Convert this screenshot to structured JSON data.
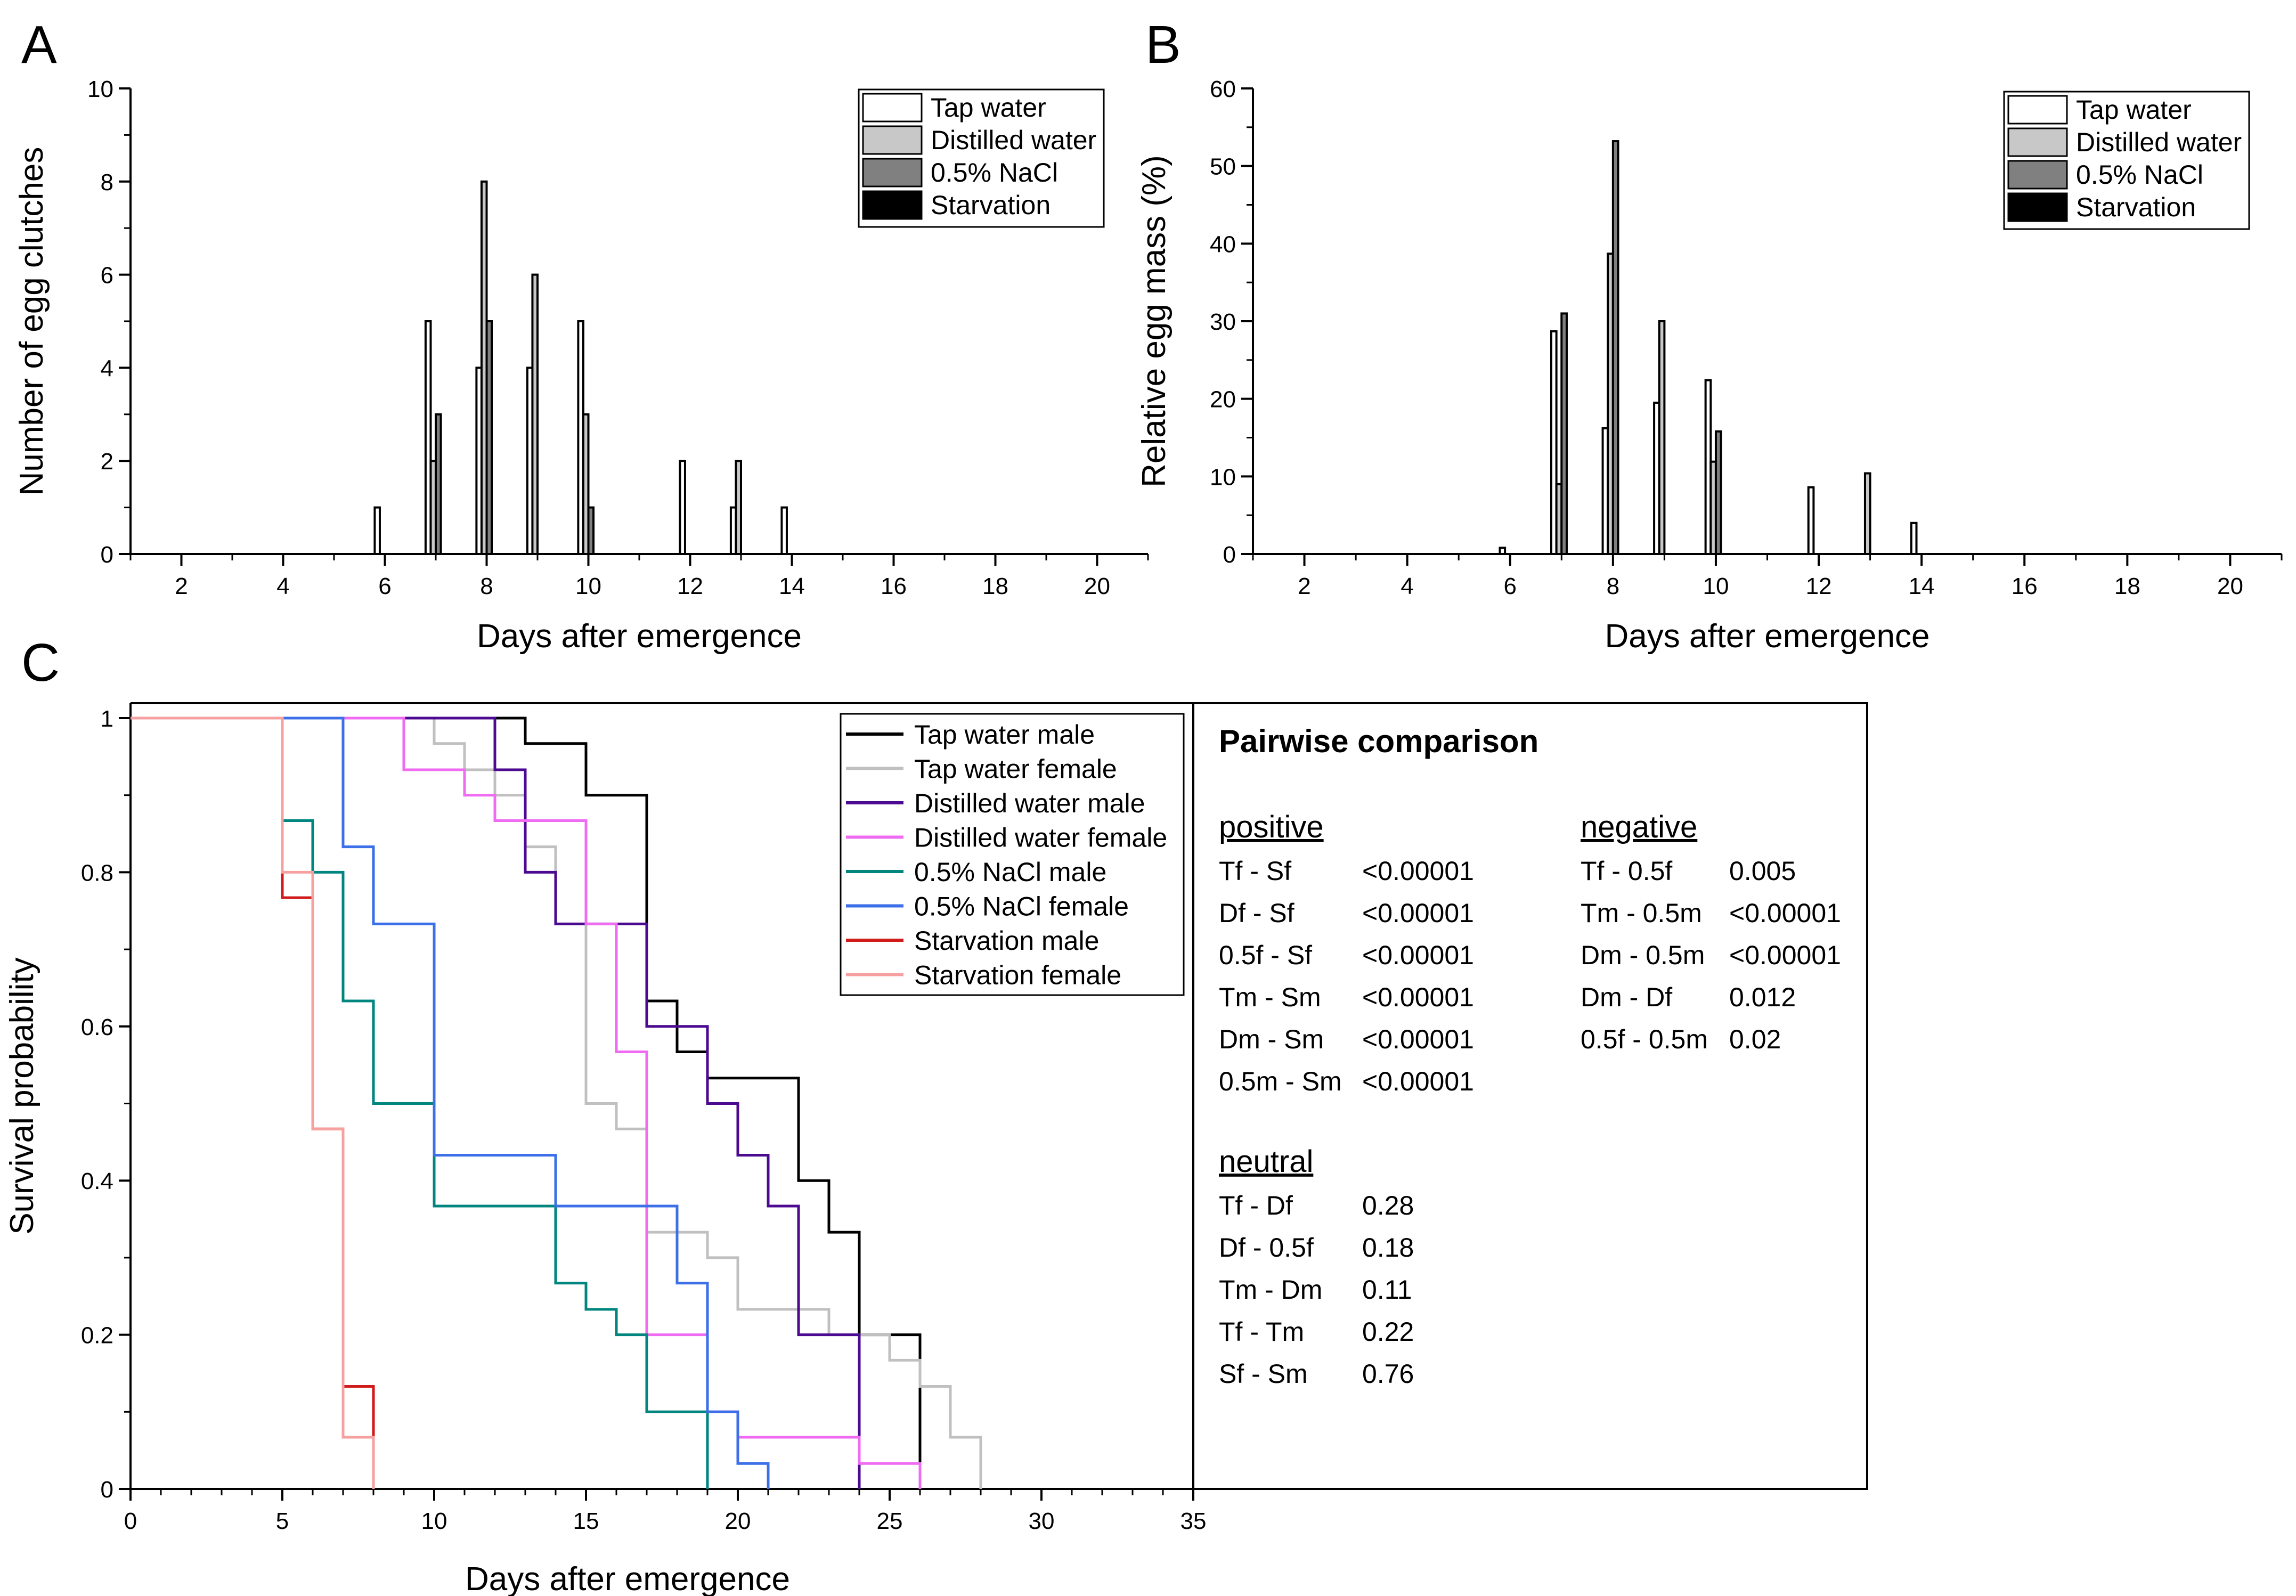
{
  "panel_labels": [
    "A",
    "B",
    "C"
  ],
  "colors": {
    "tap_water": "#ffffff",
    "distilled_water": "#c8c8c8",
    "nacl": "#808080",
    "starvation": "#000000",
    "tap_male": "#000000",
    "tap_female": "#c0c0c0",
    "dist_male": "#4b0a8f",
    "dist_female": "#ef6cf2",
    "nacl_male": "#00857f",
    "nacl_female": "#3c6fe8",
    "starv_male": "#d11a1a",
    "starv_female": "#f7a0a0"
  },
  "chart_data": [
    {
      "id": "A",
      "type": "bar",
      "title": "",
      "xlabel": "Days after emergence",
      "ylabel": "Number of egg clutches",
      "xlim": [
        1,
        21
      ],
      "ylim": [
        0,
        10
      ],
      "xticks": [
        2,
        4,
        6,
        8,
        10,
        12,
        14,
        16,
        18,
        20
      ],
      "xtick_labels": [
        "2",
        "4",
        "6",
        "8",
        "10",
        "12",
        "14",
        "16",
        "18",
        "20"
      ],
      "yticks": [
        0,
        2,
        4,
        6,
        8,
        10
      ],
      "ytick_labels": [
        "0",
        "2",
        "4",
        "6",
        "8",
        "10"
      ],
      "legend_position": "top-right",
      "categories": [
        6,
        7,
        8,
        9,
        10,
        12,
        13,
        14
      ],
      "series": [
        {
          "name": "Tap water",
          "color_key": "tap_water",
          "values": [
            1,
            5,
            4,
            4,
            5,
            2,
            1,
            1
          ]
        },
        {
          "name": "Distilled water",
          "color_key": "distilled_water",
          "values": [
            0,
            2,
            8,
            6,
            3,
            0,
            2,
            0
          ]
        },
        {
          "name": "0.5% NaCl",
          "color_key": "nacl",
          "values": [
            0,
            3,
            5,
            0,
            1,
            0,
            0,
            0
          ]
        },
        {
          "name": "Starvation",
          "color_key": "starvation",
          "values": [
            0,
            0,
            0,
            0,
            0,
            0,
            0,
            0
          ]
        }
      ]
    },
    {
      "id": "B",
      "type": "bar",
      "title": "",
      "xlabel": "Days after emergence",
      "ylabel": "Relative egg mass (%)",
      "xlim": [
        1,
        21
      ],
      "ylim": [
        0,
        60
      ],
      "xticks": [
        2,
        4,
        6,
        8,
        10,
        12,
        14,
        16,
        18,
        20
      ],
      "xtick_labels": [
        "2",
        "4",
        "6",
        "8",
        "10",
        "12",
        "14",
        "16",
        "18",
        "20"
      ],
      "yticks": [
        0,
        10,
        20,
        30,
        40,
        50,
        60
      ],
      "ytick_labels": [
        "0",
        "10",
        "20",
        "30",
        "40",
        "50",
        "60"
      ],
      "legend_position": "top-right",
      "categories": [
        6,
        7,
        8,
        9,
        10,
        12,
        13,
        14
      ],
      "series": [
        {
          "name": "Tap water",
          "color_key": "tap_water",
          "values": [
            0.8,
            28.7,
            16.2,
            19.5,
            22.4,
            8.6,
            0,
            4.0
          ]
        },
        {
          "name": "Distilled water",
          "color_key": "distilled_water",
          "values": [
            0,
            9.0,
            38.7,
            30.0,
            11.9,
            0,
            10.4,
            0
          ]
        },
        {
          "name": "0.5% NaCl",
          "color_key": "nacl",
          "values": [
            0,
            31.0,
            53.2,
            0,
            15.8,
            0,
            0,
            0
          ]
        },
        {
          "name": "Starvation",
          "color_key": "starvation",
          "values": [
            0,
            0,
            0,
            0,
            0,
            0,
            0,
            0
          ]
        }
      ]
    },
    {
      "id": "C",
      "type": "line",
      "step": true,
      "title": "",
      "xlabel": "Days after emergence",
      "ylabel": "Survival probability",
      "xlim": [
        0,
        35
      ],
      "ylim": [
        0,
        1
      ],
      "xticks": [
        0,
        5,
        10,
        15,
        20,
        25,
        30,
        35
      ],
      "xtick_labels": [
        "0",
        "5",
        "10",
        "15",
        "20",
        "25",
        "30",
        "35"
      ],
      "yticks": [
        0,
        0.2,
        0.4,
        0.6,
        0.8,
        1
      ],
      "ytick_labels": [
        "0",
        "0.2",
        "0.4",
        "0.6",
        "0.8",
        "1"
      ],
      "legend_position": "top-right",
      "series": [
        {
          "name": "Tap water male",
          "color_key": "tap_male",
          "x": [
            0,
            13,
            15,
            17,
            18,
            19,
            22,
            23,
            24,
            26
          ],
          "y": [
            1,
            0.967,
            0.9,
            0.633,
            0.567,
            0.533,
            0.4,
            0.333,
            0.2,
            0
          ]
        },
        {
          "name": "Tap water female",
          "color_key": "tap_female",
          "x": [
            0,
            10,
            11,
            12,
            13,
            14,
            15,
            16,
            17,
            19,
            20,
            23,
            25,
            26,
            27,
            28
          ],
          "y": [
            1,
            0.967,
            0.933,
            0.9,
            0.833,
            0.733,
            0.5,
            0.467,
            0.333,
            0.3,
            0.233,
            0.2,
            0.167,
            0.133,
            0.067,
            0
          ]
        },
        {
          "name": "Distilled water male",
          "color_key": "dist_male",
          "x": [
            0,
            12,
            13,
            14,
            17,
            19,
            20,
            21,
            22,
            24
          ],
          "y": [
            1,
            0.933,
            0.8,
            0.733,
            0.6,
            0.5,
            0.433,
            0.367,
            0.2,
            0
          ]
        },
        {
          "name": "Distilled water female",
          "color_key": "dist_female",
          "x": [
            0,
            9,
            11,
            12,
            15,
            16,
            17,
            19,
            20,
            24,
            26
          ],
          "y": [
            1,
            0.933,
            0.9,
            0.867,
            0.733,
            0.567,
            0.2,
            0.1,
            0.067,
            0.033,
            0
          ]
        },
        {
          "name": "0.5% NaCl male",
          "color_key": "nacl_male",
          "x": [
            0,
            5,
            6,
            7,
            8,
            10,
            14,
            15,
            16,
            17,
            19
          ],
          "y": [
            1,
            0.867,
            0.8,
            0.633,
            0.5,
            0.367,
            0.267,
            0.233,
            0.2,
            0.1,
            0
          ]
        },
        {
          "name": "0.5% NaCl female",
          "color_key": "nacl_female",
          "x": [
            0,
            7,
            8,
            10,
            14,
            18,
            19,
            20,
            21
          ],
          "y": [
            1,
            0.833,
            0.733,
            0.433,
            0.367,
            0.267,
            0.1,
            0.033,
            0
          ]
        },
        {
          "name": "Starvation male",
          "color_key": "starv_male",
          "x": [
            0,
            5,
            6,
            7,
            8
          ],
          "y": [
            1,
            0.767,
            0.467,
            0.133,
            0
          ]
        },
        {
          "name": "Starvation female",
          "color_key": "starv_female",
          "x": [
            0,
            5,
            6,
            7,
            8
          ],
          "y": [
            1,
            0.8,
            0.467,
            0.067,
            0
          ]
        }
      ]
    }
  ],
  "stats": {
    "title": "Pairwise comparison",
    "positive": {
      "heading": "positive",
      "rows": [
        {
          "pair": "Tf - Sf",
          "p": "<0.00001"
        },
        {
          "pair": "Df - Sf",
          "p": "<0.00001"
        },
        {
          "pair": "0.5f - Sf",
          "p": "<0.00001"
        },
        {
          "pair": "Tm - Sm",
          "p": "<0.00001"
        },
        {
          "pair": "Dm - Sm",
          "p": "<0.00001"
        },
        {
          "pair": "0.5m - Sm",
          "p": "<0.00001"
        }
      ]
    },
    "negative": {
      "heading": "negative",
      "rows": [
        {
          "pair": "Tf - 0.5f",
          "p": "0.005"
        },
        {
          "pair": "Tm - 0.5m",
          "p": "<0.00001"
        },
        {
          "pair": "Dm - 0.5m",
          "p": "<0.00001"
        },
        {
          "pair": "Dm - Df",
          "p": "0.012"
        },
        {
          "pair": "0.5f - 0.5m",
          "p": "0.02"
        }
      ]
    },
    "neutral": {
      "heading": "neutral",
      "rows": [
        {
          "pair": "Tf - Df",
          "p": "0.28"
        },
        {
          "pair": "Df - 0.5f",
          "p": "0.18"
        },
        {
          "pair": "Tm - Dm",
          "p": "0.11"
        },
        {
          "pair": "Tf - Tm",
          "p": "0.22"
        },
        {
          "pair": "Sf - Sm",
          "p": "0.76"
        }
      ]
    }
  }
}
